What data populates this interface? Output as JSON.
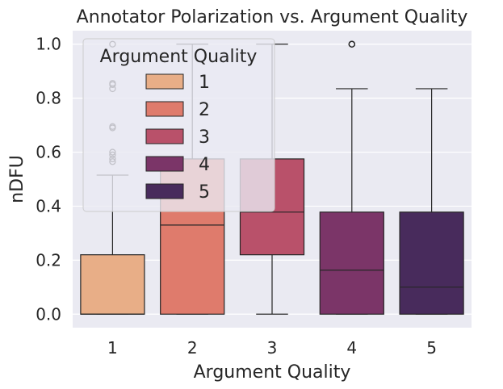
{
  "chart_data": {
    "type": "boxplot",
    "title": "Annotator Polarization vs. Argument Quality",
    "xlabel": "Argument Quality",
    "ylabel": "nDFU",
    "ylim": [
      -0.05,
      1.05
    ],
    "yticks": [
      "0.0",
      "0.2",
      "0.4",
      "0.6",
      "0.8",
      "1.0"
    ],
    "categories": [
      "1",
      "2",
      "3",
      "4",
      "5"
    ],
    "grid": true,
    "legend": {
      "title": "Argument Quality",
      "position": "upper-left",
      "entries": [
        "1",
        "2",
        "3",
        "4",
        "5"
      ]
    },
    "series": [
      {
        "name": "1",
        "color": "#e8ae87",
        "whisker_low": 0.0,
        "q1": 0.0,
        "median": 0.0,
        "q3": 0.22,
        "whisker_high": 0.515,
        "outliers": [
          0.565,
          0.575,
          0.59,
          0.6,
          0.69,
          0.695,
          0.835,
          0.85,
          0.855,
          1.0
        ]
      },
      {
        "name": "2",
        "color": "#df7b6c",
        "whisker_low": 0.0,
        "q1": 0.0,
        "median": 0.33,
        "q3": 0.575,
        "whisker_high": 1.0,
        "outliers": []
      },
      {
        "name": "3",
        "color": "#b9516a",
        "whisker_low": 0.0,
        "q1": 0.22,
        "median": 0.378,
        "q3": 0.575,
        "whisker_high": 1.0,
        "outliers": []
      },
      {
        "name": "4",
        "color": "#7b3568",
        "whisker_low": 0.0,
        "q1": 0.0,
        "median": 0.163,
        "q3": 0.378,
        "whisker_high": 0.835,
        "outliers": [
          1.0,
          1.0,
          1.0
        ]
      },
      {
        "name": "5",
        "color": "#482b5c",
        "whisker_low": 0.0,
        "q1": 0.0,
        "median": 0.1,
        "q3": 0.378,
        "whisker_high": 0.835,
        "outliers": []
      }
    ]
  }
}
